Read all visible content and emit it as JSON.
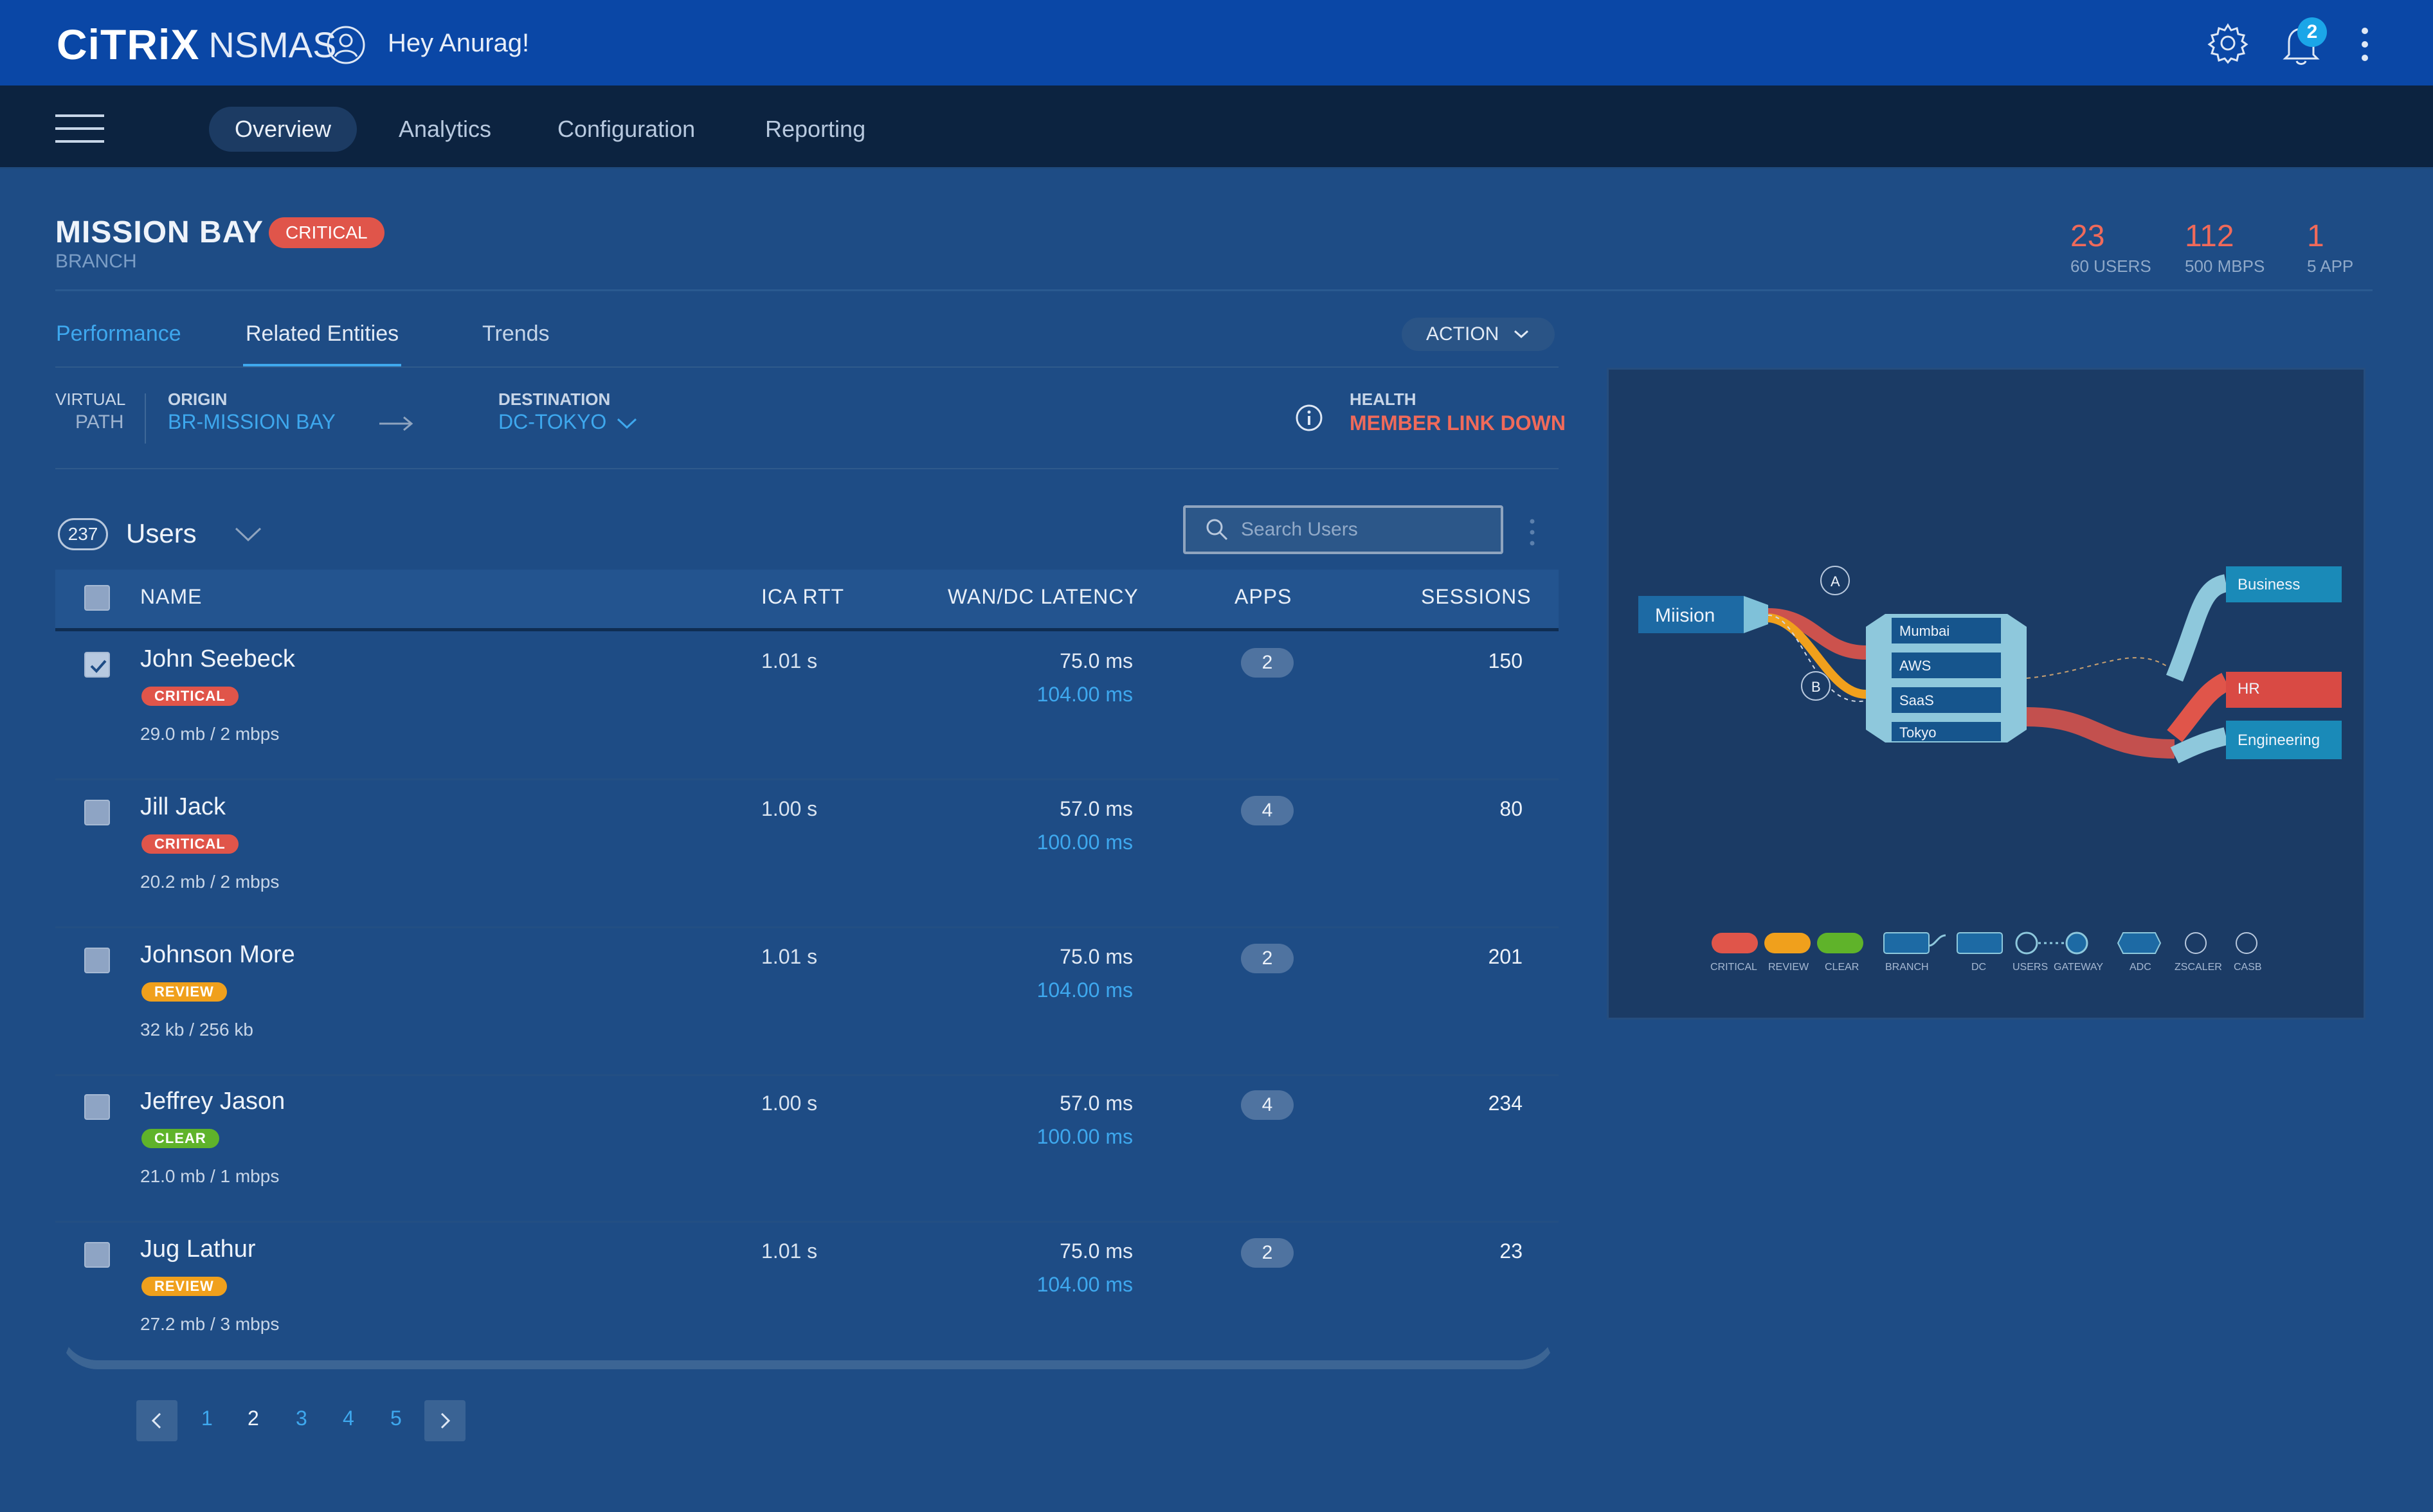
{
  "app": {
    "brand": "CiTRiX",
    "product": "NSMAS",
    "greeting": "Hey Anurag!",
    "notifications": "2"
  },
  "nav": {
    "tabs": [
      "Overview",
      "Analytics",
      "Configuration",
      "Reporting"
    ],
    "active": "Overview"
  },
  "page": {
    "title": "MISSION BAY",
    "status": "CRITICAL",
    "subtitle": "BRANCH",
    "stats": [
      {
        "value": "23",
        "label": "60 USERS"
      },
      {
        "value": "112",
        "label": "500 MBPS"
      },
      {
        "value": "1",
        "label": "5 APP"
      }
    ]
  },
  "tabs": {
    "performance": "Performance",
    "related": "Related Entities",
    "trends": "Trends",
    "action": "ACTION"
  },
  "path": {
    "virtual": "VIRTUAL",
    "path": "PATH",
    "origin_label": "ORIGIN",
    "origin": "BR-MISSION BAY",
    "dest_label": "DESTINATION",
    "dest": "DC-TOKYO",
    "health_label": "HEALTH",
    "health": "MEMBER LINK DOWN"
  },
  "users": {
    "count": "237",
    "title": "Users",
    "search_placeholder": "Search Users",
    "columns": [
      "NAME",
      "ICA RTT",
      "WAN/DC LATENCY",
      "APPS",
      "SESSIONS"
    ],
    "rows": [
      {
        "name": "John Seebeck",
        "status": "CRITICAL",
        "usage": "29.0 mb / 2 mbps",
        "rtt": "1.01 s",
        "lat1": "75.0 ms",
        "lat2": "104.00 ms",
        "apps": "2",
        "sessions": "150",
        "checked": true
      },
      {
        "name": "Jill Jack",
        "status": "CRITICAL",
        "usage": "20.2 mb / 2 mbps",
        "rtt": "1.00 s",
        "lat1": "57.0 ms",
        "lat2": "100.00 ms",
        "apps": "4",
        "sessions": "80",
        "checked": false
      },
      {
        "name": "Johnson More",
        "status": "REVIEW",
        "usage": "32 kb / 256 kb",
        "rtt": "1.01 s",
        "lat1": "75.0 ms",
        "lat2": "104.00 ms",
        "apps": "2",
        "sessions": "201",
        "checked": false
      },
      {
        "name": "Jeffrey Jason",
        "status": "CLEAR",
        "usage": "21.0 mb / 1 mbps",
        "rtt": "1.00 s",
        "lat1": "57.0 ms",
        "lat2": "100.00 ms",
        "apps": "4",
        "sessions": "234",
        "checked": false
      },
      {
        "name": "Jug Lathur",
        "status": "REVIEW",
        "usage": "27.2 mb / 3 mbps",
        "rtt": "1.01 s",
        "lat1": "75.0 ms",
        "lat2": "104.00 ms",
        "apps": "2",
        "sessions": "23",
        "checked": false
      }
    ]
  },
  "pagination": {
    "pages": [
      "1",
      "2",
      "3",
      "4",
      "5"
    ],
    "current": "2"
  },
  "diagram": {
    "source": "Miision",
    "gateways": [
      "A",
      "B"
    ],
    "dcs": [
      "Mumbai",
      "AWS",
      "SaaS",
      "Tokyo"
    ],
    "targets": [
      "Business",
      "HR",
      "Engineering"
    ],
    "legend": [
      "CRITICAL",
      "REVIEW",
      "CLEAR",
      "BRANCH",
      "DC",
      "USERS",
      "GATEWAY",
      "ADC",
      "ZSCALER",
      "CASB"
    ]
  },
  "colors": {
    "critical": "#e0554a",
    "review": "#f0a01c",
    "clear": "#5fb32a",
    "accent": "#3ea8ee",
    "topbar": "#0a47a6"
  }
}
